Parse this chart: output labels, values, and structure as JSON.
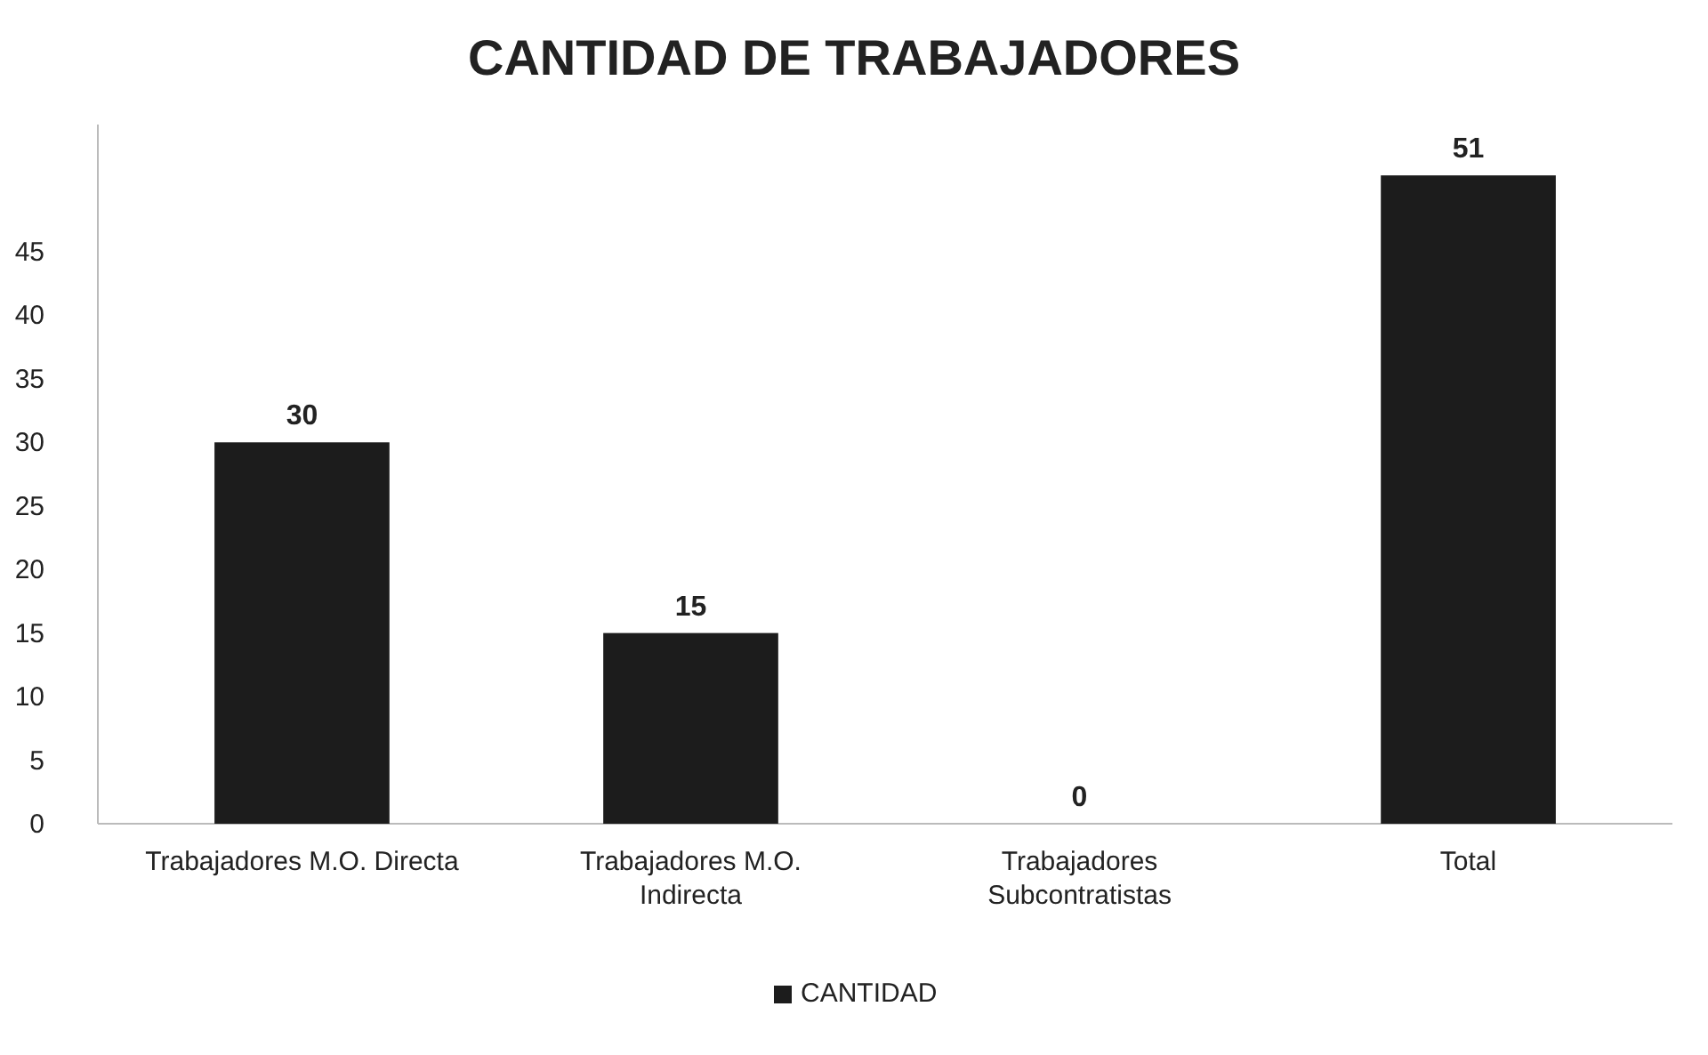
{
  "chart_data": {
    "type": "bar",
    "title": "CANTIDAD DE TRABAJADORES",
    "categories": [
      "Trabajadores M.O. Directa",
      "Trabajadores M.O. Indirecta",
      "Trabajadores Subcontratistas",
      "Total"
    ],
    "series": [
      {
        "name": "CANTIDAD",
        "color": "#1c1c1c",
        "values": [
          30,
          15,
          0,
          51
        ]
      }
    ],
    "ylim": [
      0,
      55
    ],
    "yticks": [
      0,
      5,
      10,
      15,
      20,
      25,
      30,
      35,
      40,
      45
    ],
    "data_labels": true,
    "legend": "bottom",
    "grid": false
  }
}
